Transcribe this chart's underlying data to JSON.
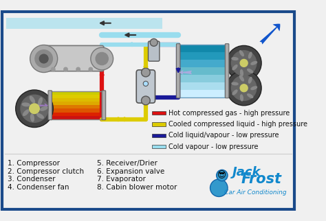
{
  "background_color": "#f0f0f0",
  "border_color": "#1a4a8a",
  "legend_items": [
    {
      "label": "Hot compressed gas - high pressure",
      "color": "#dd1111"
    },
    {
      "label": "Cooled compressed liquid - high pressure",
      "color": "#ddcc00"
    },
    {
      "label": "Cold liquid/vapour - low pressure",
      "color": "#1a1a99"
    },
    {
      "label": "Cold vapour - low pressure",
      "color": "#99ddee"
    }
  ],
  "parts_left": [
    "1. Compressor",
    "2. Compressor clutch",
    "3. Condenser",
    "4. Condenser fan"
  ],
  "parts_right": [
    "5. Receiver/Drier",
    "6. Expansion valve",
    "7. Evaporator",
    "8. Cabin blower motor"
  ],
  "font_size_parts": 7.5,
  "font_size_legend": 7.0,
  "brand_text1": "Jack Frost",
  "brand_text2": "Car Air Conditioning"
}
